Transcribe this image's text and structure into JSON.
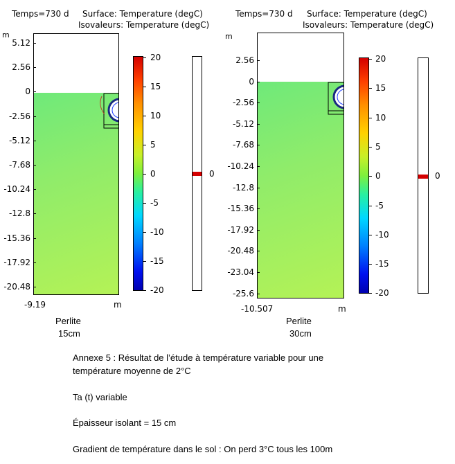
{
  "left_plot": {
    "time_label": "Temps=730 d",
    "surface_label": "Surface: Temperature (degC)",
    "isovalue_label": "Isovaleurs: Temperature (degC)",
    "y_unit": "m",
    "x_unit": "m",
    "x_min_label": "-9.19",
    "y_ticks": [
      "5.12",
      "2.56",
      "0",
      "-2.56",
      "-5.12",
      "-7.68",
      "-10.24",
      "-12.8",
      "-15.36",
      "-17.92",
      "-20.48"
    ],
    "colorbar_ticks": [
      "20",
      "15",
      "10",
      "5",
      "0",
      "-5",
      "-10",
      "-15",
      "-20"
    ],
    "iso_value": "0",
    "caption_line1": "Perlite",
    "caption_line2": "15cm"
  },
  "right_plot": {
    "time_label": "Temps=730 d",
    "surface_label": "Surface: Temperature (degC)",
    "isovalue_label": "Isovaleurs: Temperature (degC)",
    "y_unit": "m",
    "x_unit": "m",
    "x_min_label": "-10.507",
    "y_ticks": [
      "2.56",
      "0",
      "-2.56",
      "-5.12",
      "-7.68",
      "-10.24",
      "-12.8",
      "-15.36",
      "-17.92",
      "-20.48",
      "-23.04",
      "-25.6"
    ],
    "colorbar_ticks": [
      "20",
      "15",
      "10",
      "5",
      "0",
      "-5",
      "-10",
      "-15",
      "-20"
    ],
    "iso_value": "0",
    "caption_line1": "Perlite",
    "caption_line2": "30cm"
  },
  "notes": {
    "line1": "Annexe 5 : Résultat de l’étude à température variable pour une",
    "line2": "température moyenne de 2°C",
    "line3": "Ta (t) variable",
    "line4": "Épaisseur isolant = 15 cm",
    "line5": "Gradient de température dans le sol : On perd 3°C tous les 100m"
  }
}
